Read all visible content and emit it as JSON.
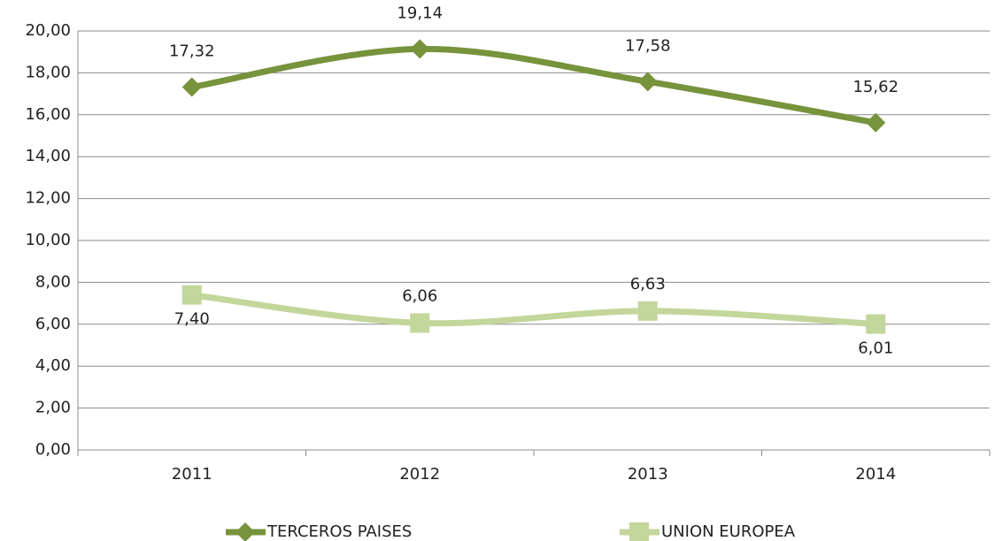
{
  "chart_data": {
    "type": "line",
    "categories": [
      "2011",
      "2012",
      "2013",
      "2014"
    ],
    "series": [
      {
        "name": "TERCEROS PAISES",
        "color": "#77933c",
        "marker": "diamond",
        "values": [
          17.32,
          19.14,
          17.58,
          15.62
        ],
        "value_labels": [
          "17,32",
          "19,14",
          "17,58",
          "15,62"
        ]
      },
      {
        "name": "UNION EUROPEA",
        "color": "#c3d69b",
        "marker": "square",
        "values": [
          7.4,
          6.06,
          6.63,
          6.01
        ],
        "value_labels": [
          "7,40",
          "6,06",
          "6,63",
          "6,01"
        ]
      }
    ],
    "ylim": [
      0,
      20
    ],
    "yticks": [
      {
        "value": 0,
        "label": "0,00"
      },
      {
        "value": 2,
        "label": "2,00"
      },
      {
        "value": 4,
        "label": "4,00"
      },
      {
        "value": 6,
        "label": "6,00"
      },
      {
        "value": 8,
        "label": "8,00"
      },
      {
        "value": 10,
        "label": "10,00"
      },
      {
        "value": 12,
        "label": "12,00"
      },
      {
        "value": 14,
        "label": "14,00"
      },
      {
        "value": 16,
        "label": "16,00"
      },
      {
        "value": 18,
        "label": "18,00"
      },
      {
        "value": 20,
        "label": "20,00"
      }
    ],
    "grid": true,
    "legend": "bottom"
  }
}
